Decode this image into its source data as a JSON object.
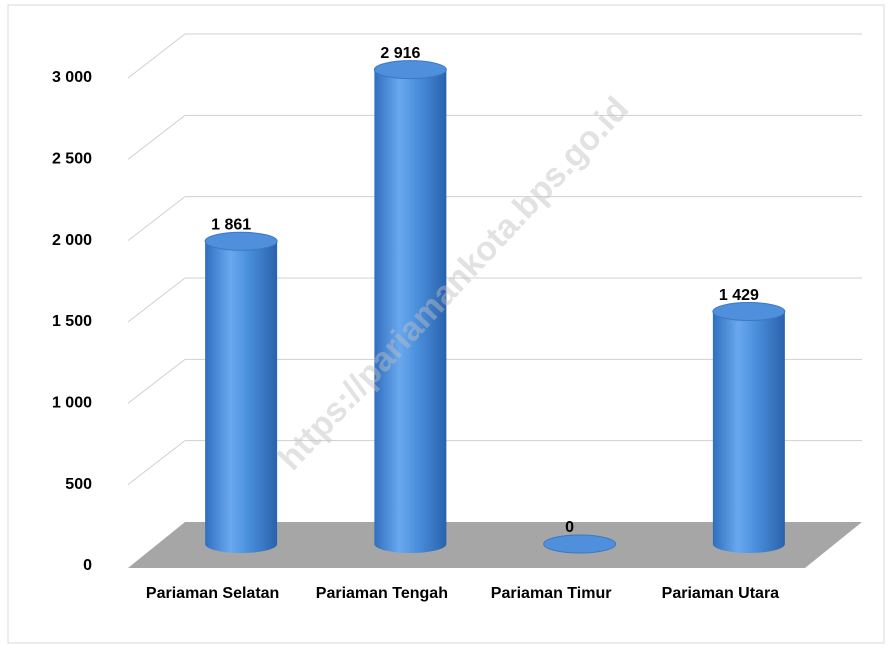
{
  "chart_data": {
    "type": "bar",
    "style": "3d-cylinder",
    "categories": [
      "Pariaman Selatan",
      "Pariaman Tengah",
      "Pariaman Timur",
      "Pariaman Utara"
    ],
    "values": [
      1861,
      2916,
      0,
      1429
    ],
    "value_labels": [
      "1 861",
      "2 916",
      "0",
      "1 429"
    ],
    "color": "#4a8fdc",
    "ylim": [
      0,
      3000
    ],
    "yticks": [
      0,
      500,
      {
        "value": 1000,
        "label": "1 000"
      },
      {
        "value": 1500,
        "label": "1 500"
      },
      {
        "value": 2000,
        "label": "2 000"
      },
      {
        "value": 2500,
        "label": "2 500"
      },
      {
        "value": 3000,
        "label": "3 000"
      }
    ],
    "grid": true,
    "watermark": "https://pariamankota.bps.go.id"
  }
}
